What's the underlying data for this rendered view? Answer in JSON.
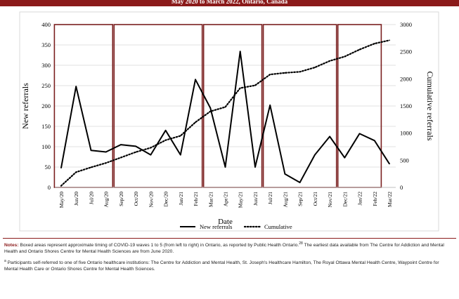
{
  "header": {
    "subtitle": "May 2020 to March 2022, Ontario, Canada"
  },
  "chart_data": {
    "type": "line",
    "xlabel": "Date",
    "ylabel": "New referrals",
    "y2label": "Cumulative referrals",
    "categories": [
      "May/20",
      "Jun/20",
      "Jul/20",
      "Aug/20",
      "Sep/20",
      "Oct/20",
      "Nov/20",
      "Dec/20",
      "Jan/21",
      "Feb/21",
      "Mar/21",
      "Apr/21",
      "May/21",
      "Jun/21",
      "Jul/21",
      "Aug/21",
      "Sep/21",
      "Oct/21",
      "Nov/21",
      "Dec/21",
      "Jan/22",
      "Feb/22",
      "Mar/22"
    ],
    "ylim": [
      0,
      400
    ],
    "yticks": [
      0,
      50,
      100,
      150,
      200,
      250,
      300,
      350,
      400
    ],
    "y2lim": [
      0,
      3000
    ],
    "y2ticks": [
      0,
      500,
      1000,
      1500,
      2000,
      2500,
      3000
    ],
    "grid": "horizontal",
    "legend": "bottom-center",
    "series": [
      {
        "name": "New referrals",
        "axis": "left",
        "style": "solid",
        "color": "#000000",
        "values": [
          48,
          248,
          91,
          87,
          105,
          101,
          80,
          140,
          80,
          265,
          195,
          50,
          334,
          50,
          202,
          33,
          12,
          80,
          125,
          73,
          132,
          115,
          58
        ]
      },
      {
        "name": "Cumulative",
        "axis": "right",
        "style": "dotted",
        "color": "#000000",
        "values": [
          30,
          280,
          370,
          450,
          550,
          650,
          730,
          870,
          950,
          1200,
          1400,
          1480,
          1830,
          1880,
          2080,
          2110,
          2130,
          2210,
          2330,
          2410,
          2540,
          2650,
          2710
        ]
      }
    ],
    "wave_boxes": [
      {
        "from": "May/20",
        "to": "Aug/20"
      },
      {
        "from": "Sep/20",
        "to": "Feb/21"
      },
      {
        "from": "Mar/21",
        "to": "Jun/21"
      },
      {
        "from": "Jul/21",
        "to": "Nov/21"
      },
      {
        "from": "Dec/21",
        "to": "Feb/22"
      }
    ],
    "box_color": "#7a1f1f"
  },
  "notes": {
    "label": "Notes:",
    "text": "Boxed areas represent approximate timing of COVID-19 waves 1 to 5 (from left to right) in Ontario, as reported by Public Health Ontario.",
    "ref": "28",
    "text2": "The earliest data available from The Centre for Addiction and Mental Health and Ontario Shores Centre for Mental Health Sciences are from June 2020.",
    "footnote_mark": "a",
    "footnote": "Participants self-referred to one of five Ontario healthcare institutions: The Centre for Addiction and Mental Health, St. Joseph's Healthcare Hamilton, The Royal Ottawa Mental Health Centre, Waypoint Centre for Mental Health Care or Ontario Shores Centre for Mental Health Sciences."
  }
}
